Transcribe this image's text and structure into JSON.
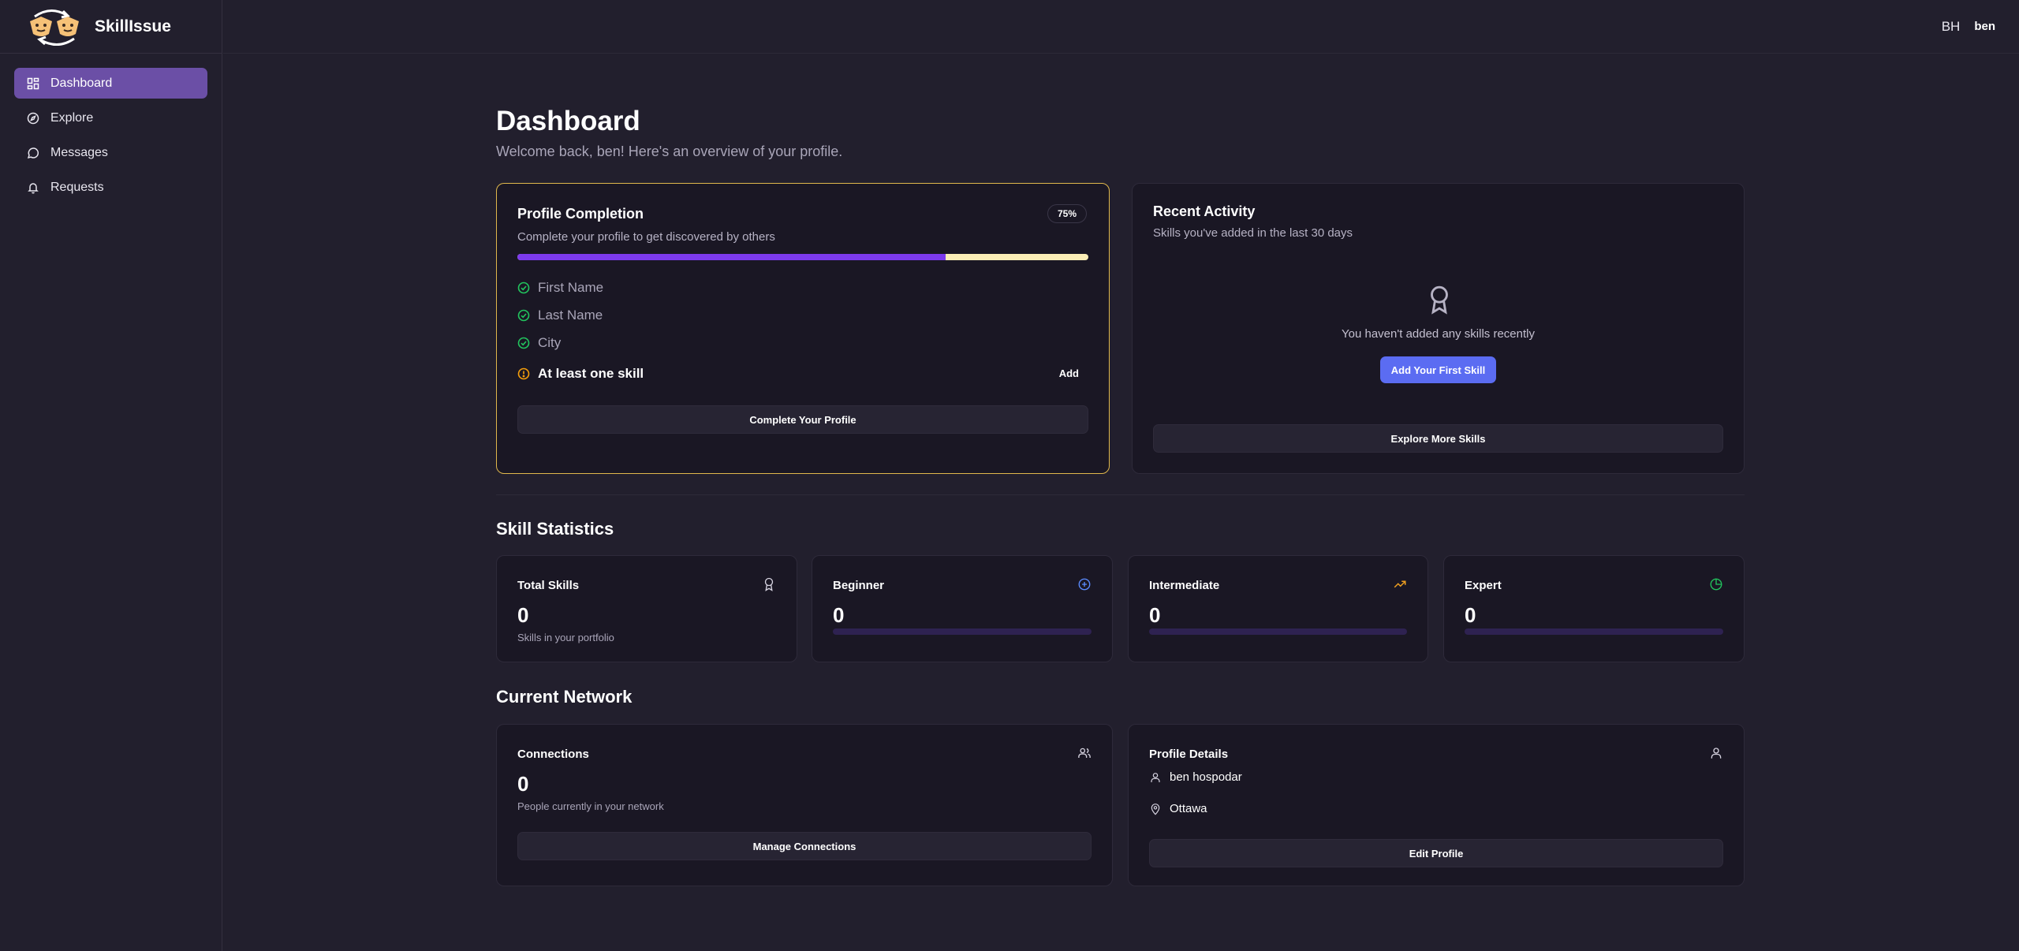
{
  "app": {
    "name": "SkillIssue",
    "logo_icon": "two-faces-swap-logo"
  },
  "sidebar": {
    "items": [
      {
        "label": "Dashboard",
        "icon": "grid-icon",
        "active": true
      },
      {
        "label": "Explore",
        "icon": "compass-icon",
        "active": false
      },
      {
        "label": "Messages",
        "icon": "message-circle-icon",
        "active": false
      },
      {
        "label": "Requests",
        "icon": "bell-icon",
        "active": false
      }
    ]
  },
  "topbar": {
    "initials": "BH",
    "username": "ben"
  },
  "page": {
    "title": "Dashboard",
    "subtitle": "Welcome back, ben! Here's an overview of your profile."
  },
  "profile_completion": {
    "title": "Profile Completion",
    "badge": "75%",
    "progress": 0.75,
    "description": "Complete your profile to get discovered by others",
    "items": [
      {
        "label": "First Name",
        "done": true
      },
      {
        "label": "Last Name",
        "done": true
      },
      {
        "label": "City",
        "done": true
      },
      {
        "label": "At least one skill",
        "done": false,
        "action": "Add"
      }
    ],
    "button": "Complete Your Profile",
    "border_color": "#e0b84c"
  },
  "recent_activity": {
    "title": "Recent Activity",
    "description": "Skills you've added in the last 30 days",
    "empty_text": "You haven't added any skills recently",
    "primary_button": "Add Your First Skill",
    "secondary_button": "Explore More Skills"
  },
  "skill_statistics": {
    "title": "Skill Statistics",
    "cards": [
      {
        "title": "Total Skills",
        "value": "0",
        "note": "Skills in your portfolio",
        "icon": "award-icon"
      },
      {
        "title": "Beginner",
        "value": "0",
        "icon": "plus-circle-icon",
        "icon_color": "#5b8cff",
        "progress": 0
      },
      {
        "title": "Intermediate",
        "value": "0",
        "icon": "trending-up-icon",
        "icon_color": "#f0a020",
        "progress": 0
      },
      {
        "title": "Expert",
        "value": "0",
        "icon": "pie-chart-icon",
        "icon_color": "#22c55e",
        "progress": 0
      }
    ]
  },
  "current_network": {
    "title": "Current Network",
    "connections": {
      "title": "Connections",
      "value": "0",
      "note": "People currently in your network",
      "button": "Manage Connections"
    },
    "profile_details": {
      "title": "Profile Details",
      "name": "ben hospodar",
      "city": "Ottawa",
      "button": "Edit Profile"
    }
  },
  "colors": {
    "accent": "#6b4fa6",
    "progress_fill": "#7c3aed",
    "primary_button": "#5b6cf2"
  }
}
